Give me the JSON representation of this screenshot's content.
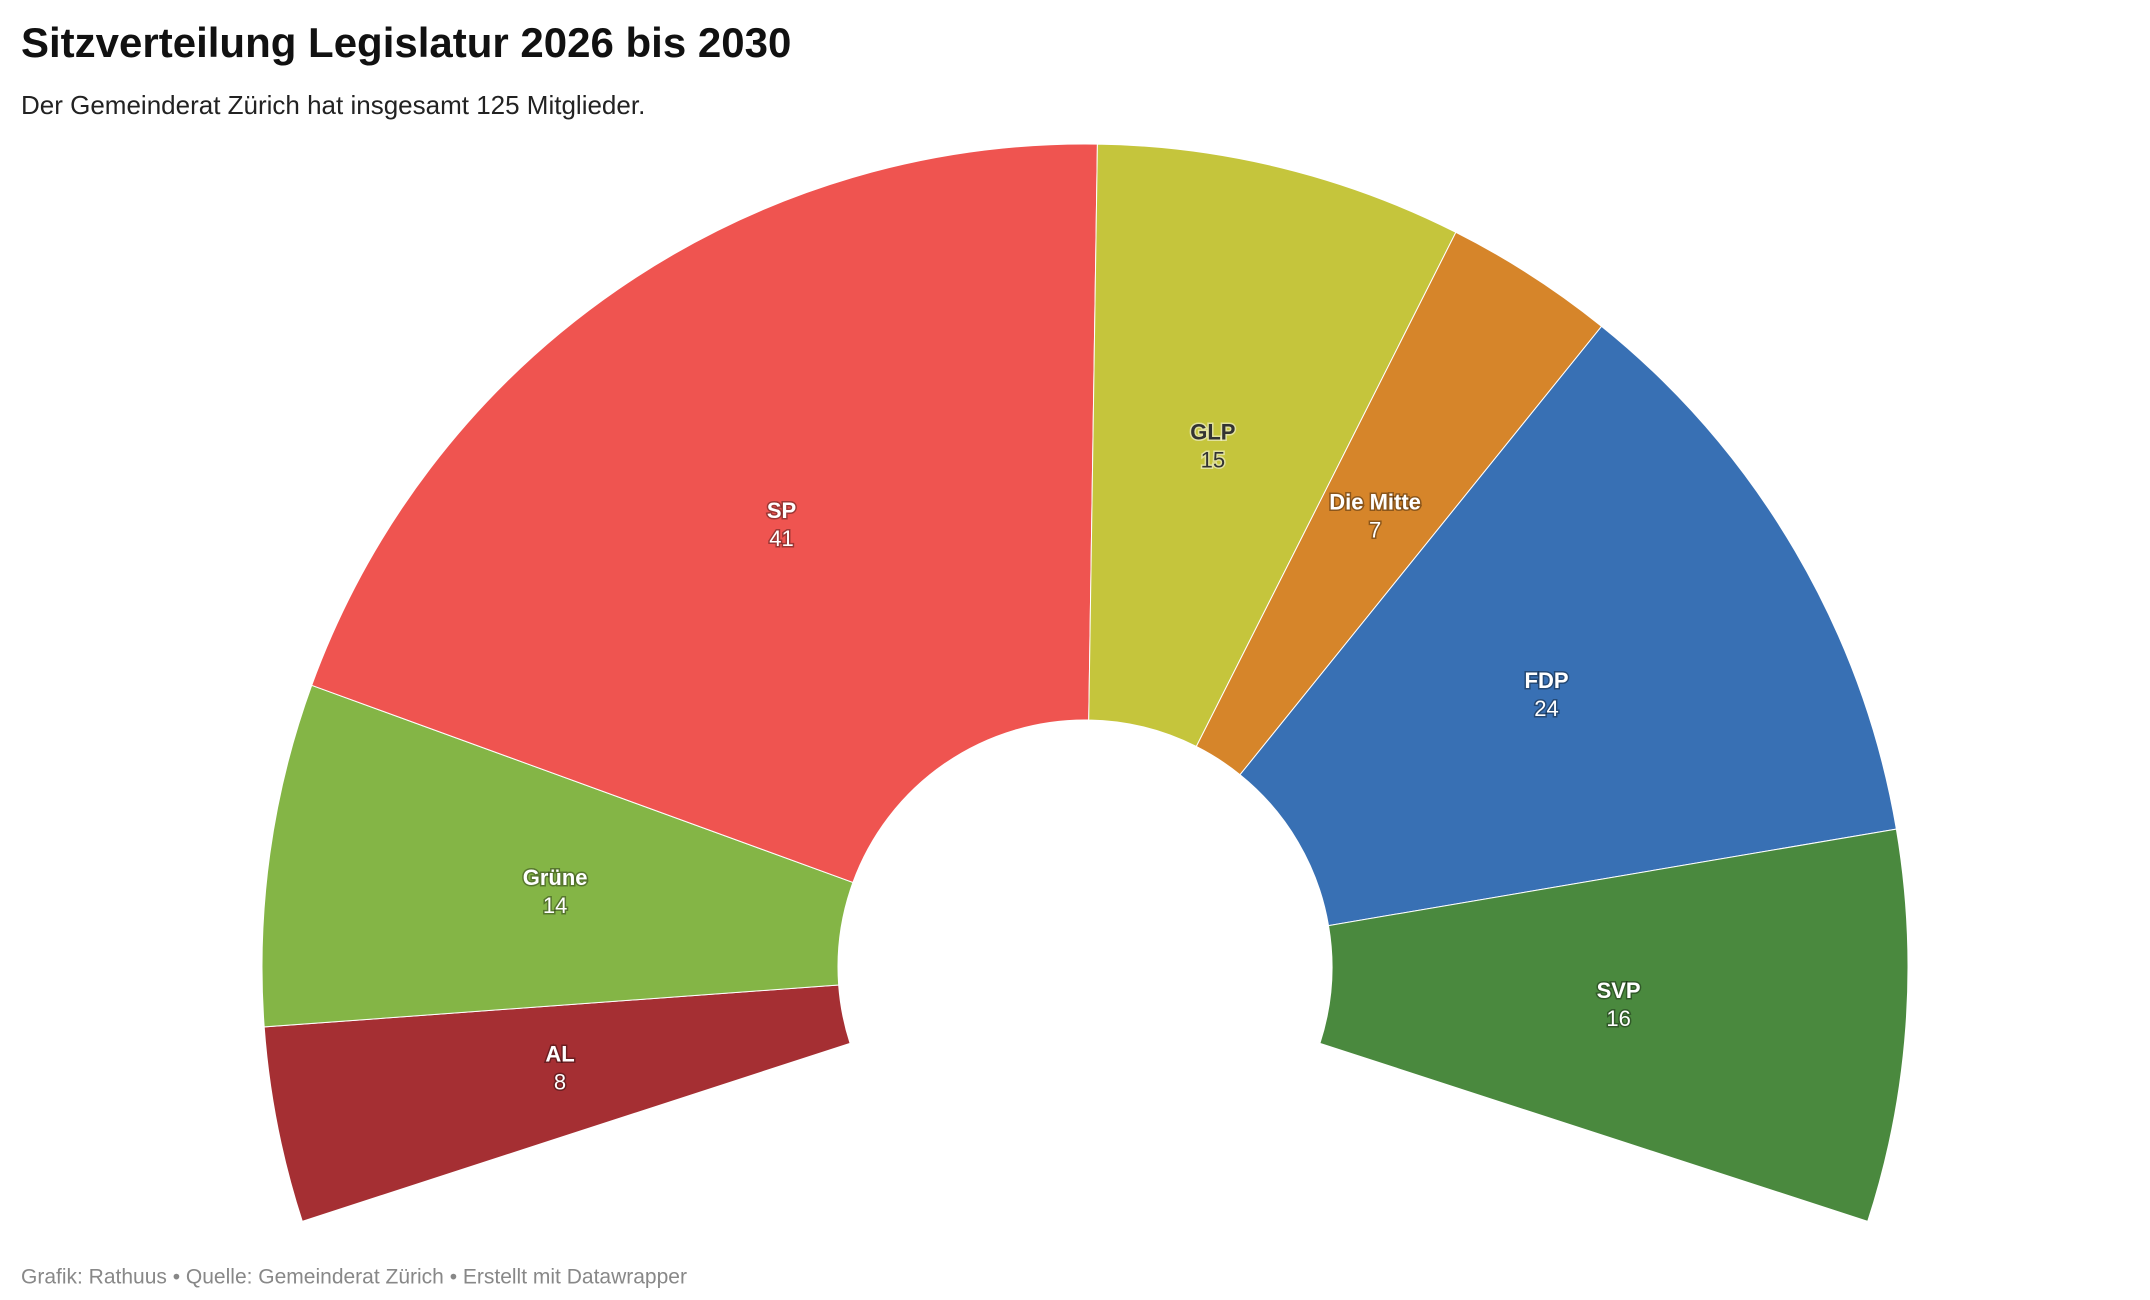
{
  "chart_data": {
    "type": "parliament",
    "title": "Sitzverteilung Legislatur 2026 bis 2030",
    "subtitle": "Der Gemeinderat Zürich hat insgesamt 125 Mitglieder.",
    "footer": "Grafik: Rathuus • Quelle: Gemeinderat Zürich • Erstellt mit Datawrapper",
    "categories": [
      "AL",
      "Grüne",
      "SP",
      "GLP",
      "Die Mitte",
      "FDP",
      "SVP"
    ],
    "values": [
      8,
      14,
      41,
      15,
      7,
      24,
      16
    ],
    "colors": [
      "#a52f33",
      "#84b546",
      "#ef5450",
      "#c5c53c",
      "#d6852a",
      "#3870b4",
      "#4a893e"
    ]
  }
}
